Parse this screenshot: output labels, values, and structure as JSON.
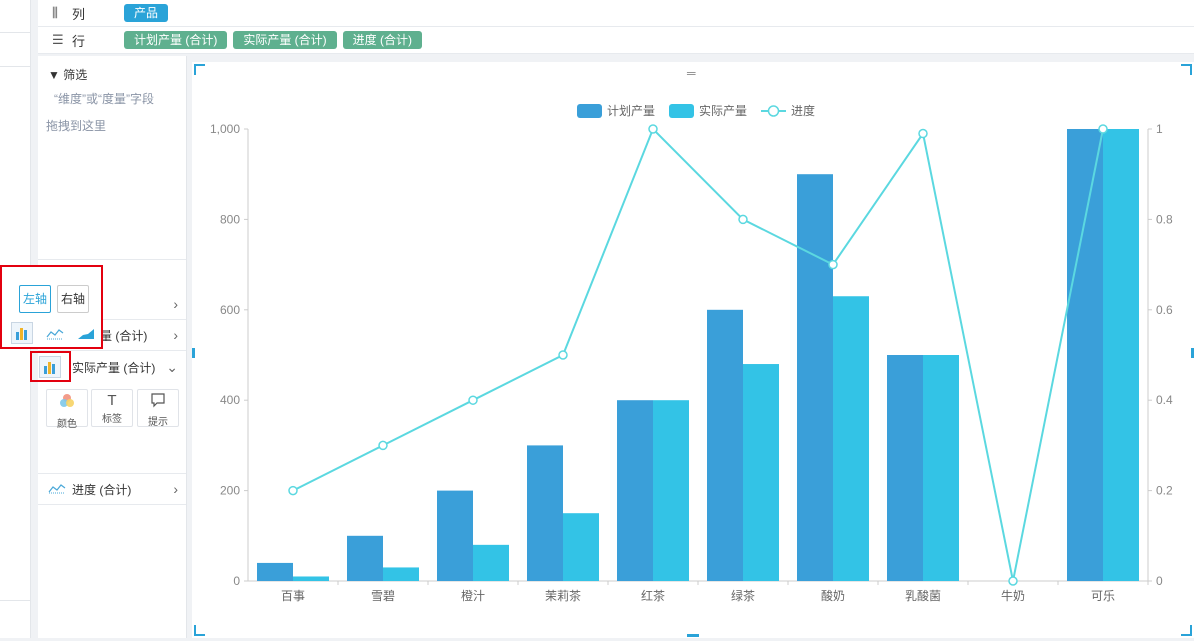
{
  "shelves": {
    "columns": {
      "icon": "columns-icon",
      "label": "列",
      "pills": [
        "产品"
      ]
    },
    "rows": {
      "icon": "rows-icon",
      "label": "行",
      "pills": [
        "计划产量 (合计)",
        "实际产量 (合计)",
        "进度 (合计)"
      ]
    }
  },
  "filter": {
    "title": "筛选",
    "hint_line1": "“维度”或“度量”字段",
    "hint_line2": "拖拽到这里"
  },
  "marks": {
    "plan_label": "量 (合计)",
    "actual_label": "实际产量 (合计)",
    "progress_label": "进度 (合计)",
    "props": [
      {
        "icon": "color-icon",
        "label": "颜色"
      },
      {
        "icon": "label-icon",
        "glyph": "T",
        "label": "标签"
      },
      {
        "icon": "tooltip-icon",
        "label": "提示"
      }
    ]
  },
  "axis_popup": {
    "left": "左轴",
    "right": "右轴",
    "selected": "left"
  },
  "colors": {
    "plan": "#3a9fd9",
    "actual": "#33c3e6",
    "progress": "#5bd8e0",
    "pill_blue": "#2aa3d8",
    "pill_green": "#5fb08f",
    "highlight": "#e3000f"
  },
  "chart_data": {
    "type": "bar",
    "categories": [
      "百事",
      "雪碧",
      "橙汁",
      "茉莉茶",
      "红茶",
      "绿茶",
      "酸奶",
      "乳酸菌",
      "牛奶",
      "可乐"
    ],
    "series": [
      {
        "name": "计划产量",
        "type": "bar",
        "axis": "left",
        "values": [
          40,
          100,
          200,
          300,
          400,
          600,
          900,
          500,
          0,
          1000
        ]
      },
      {
        "name": "实际产量",
        "type": "bar",
        "axis": "left",
        "values": [
          10,
          30,
          80,
          150,
          400,
          480,
          630,
          500,
          0,
          1000
        ]
      },
      {
        "name": "进度",
        "type": "line",
        "axis": "right",
        "values": [
          0.2,
          0.3,
          0.4,
          0.5,
          1.0,
          0.8,
          0.7,
          0.99,
          0,
          1.0
        ]
      }
    ],
    "y_left": {
      "ylim": [
        0,
        1000
      ],
      "ticks": [
        "0",
        "200",
        "400",
        "600",
        "800",
        "1,000"
      ]
    },
    "y_right": {
      "ylim": [
        0,
        1
      ],
      "ticks": [
        "0",
        "0.2",
        "0.4",
        "0.6",
        "0.8",
        "1"
      ]
    },
    "legend": {
      "position": "top-center",
      "entries": [
        "计划产量",
        "实际产量",
        "进度"
      ]
    },
    "grid": false
  }
}
